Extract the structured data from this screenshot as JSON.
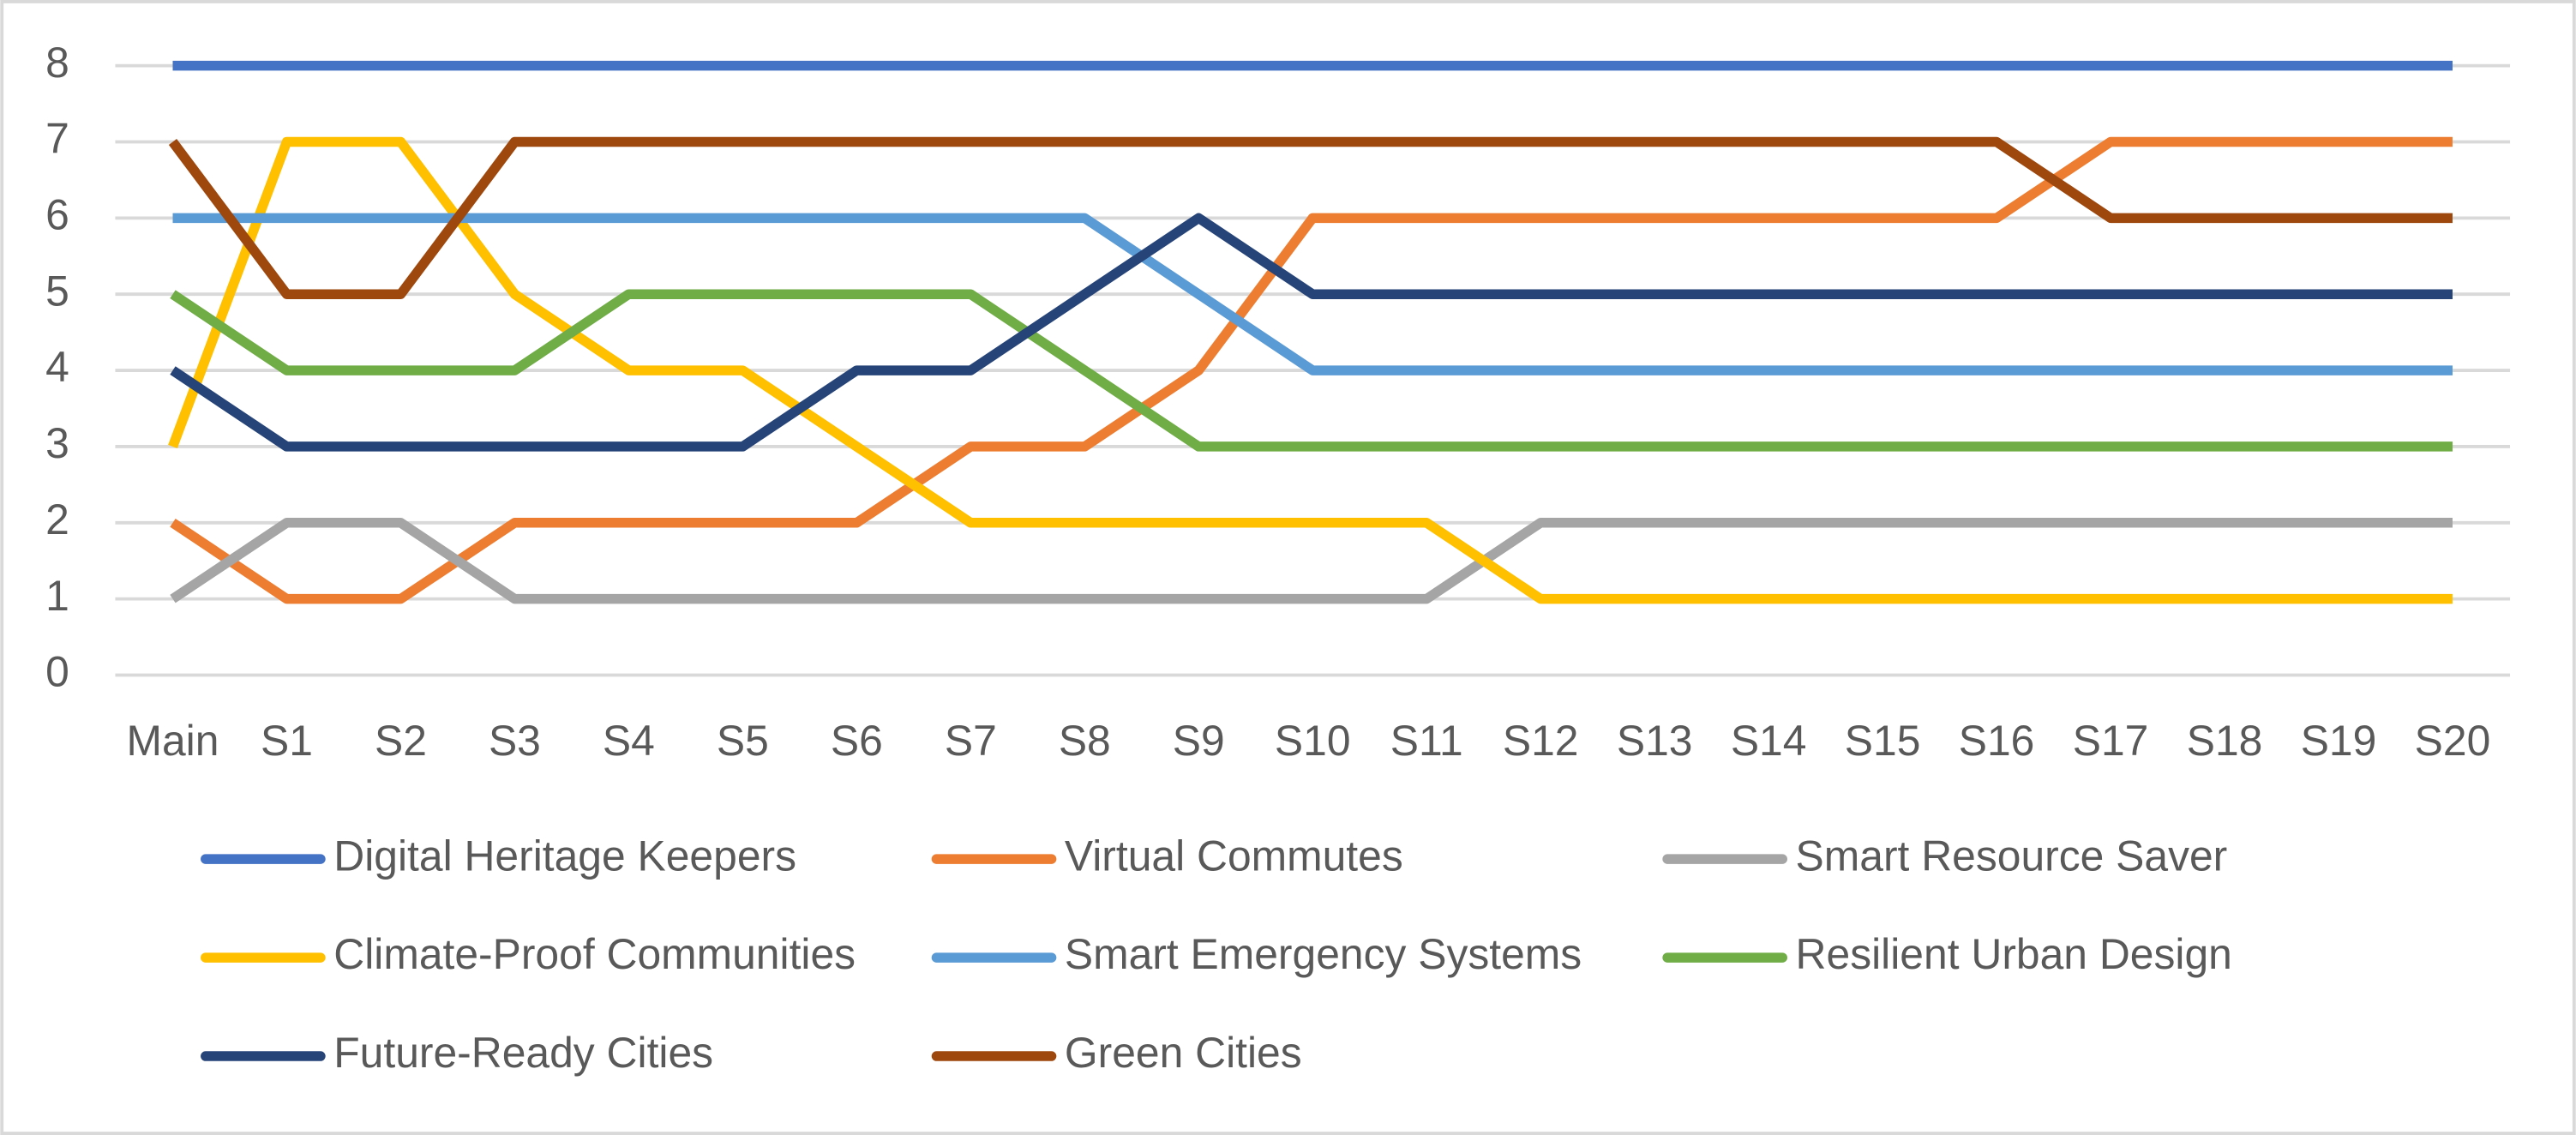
{
  "chart_data": {
    "type": "line",
    "categories": [
      "Main",
      "S1",
      "S2",
      "S3",
      "S4",
      "S5",
      "S6",
      "S7",
      "S8",
      "S9",
      "S10",
      "S11",
      "S12",
      "S13",
      "S14",
      "S15",
      "S16",
      "S17",
      "S18",
      "S19",
      "S20"
    ],
    "series": [
      {
        "name": "Digital Heritage Keepers",
        "color": "#4472c4",
        "values": [
          8,
          8,
          8,
          8,
          8,
          8,
          8,
          8,
          8,
          8,
          8,
          8,
          8,
          8,
          8,
          8,
          8,
          8,
          8,
          8,
          8
        ]
      },
      {
        "name": "Virtual Commutes",
        "color": "#ed7d31",
        "values": [
          2,
          1,
          1,
          2,
          2,
          2,
          2,
          3,
          3,
          4,
          6,
          6,
          6,
          6,
          6,
          6,
          6,
          7,
          7,
          7,
          7
        ]
      },
      {
        "name": "Smart Resource Saver",
        "color": "#a5a5a5",
        "values": [
          1,
          2,
          2,
          1,
          1,
          1,
          1,
          1,
          1,
          1,
          1,
          1,
          2,
          2,
          2,
          2,
          2,
          2,
          2,
          2,
          2
        ]
      },
      {
        "name": "Climate-Proof Communities",
        "color": "#ffc000",
        "values": [
          3,
          7,
          7,
          5,
          4,
          4,
          3,
          2,
          2,
          2,
          2,
          2,
          1,
          1,
          1,
          1,
          1,
          1,
          1,
          1,
          1
        ]
      },
      {
        "name": "Smart Emergency Systems",
        "color": "#5b9bd5",
        "values": [
          6,
          6,
          6,
          6,
          6,
          6,
          6,
          6,
          6,
          5,
          4,
          4,
          4,
          4,
          4,
          4,
          4,
          4,
          4,
          4,
          4
        ]
      },
      {
        "name": "Resilient Urban Design",
        "color": "#70ad47",
        "values": [
          5,
          4,
          4,
          4,
          5,
          5,
          5,
          5,
          4,
          3,
          3,
          3,
          3,
          3,
          3,
          3,
          3,
          3,
          3,
          3,
          3
        ]
      },
      {
        "name": "Future-Ready Cities",
        "color": "#264478",
        "values": [
          4,
          3,
          3,
          3,
          3,
          3,
          4,
          4,
          5,
          6,
          5,
          5,
          5,
          5,
          5,
          5,
          5,
          5,
          5,
          5,
          5
        ]
      },
      {
        "name": "Green Cities",
        "color": "#9e480e",
        "values": [
          7,
          5,
          5,
          7,
          7,
          7,
          7,
          7,
          7,
          7,
          7,
          7,
          7,
          7,
          7,
          7,
          7,
          6,
          6,
          6,
          6
        ]
      }
    ],
    "ylim": [
      0,
      8
    ],
    "yticks": [
      0,
      1,
      2,
      3,
      4,
      5,
      6,
      7,
      8
    ],
    "grid": true,
    "legend": "bottom"
  }
}
